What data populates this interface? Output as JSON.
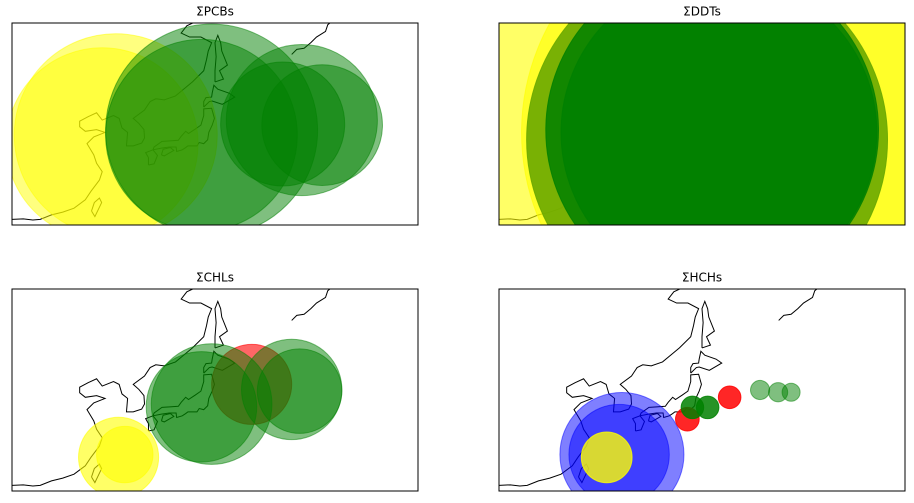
{
  "chart_data": [
    {
      "type": "scatter",
      "title": "ΣPCBs",
      "xlim": [
        106,
        178
      ],
      "ylim": [
        20.5,
        56.5
      ],
      "series": [
        {
          "color": "#ffff00",
          "alpha": 0.5,
          "x": [
            124.4,
            122
          ],
          "y": [
            36.5,
            35
          ],
          "sizes": [
            18,
            17
          ]
        },
        {
          "color": "#008000",
          "alpha": 0.5,
          "x": [
            141.4,
            139.6,
            157.4,
            161,
            154
          ],
          "y": [
            37.4,
            36.5,
            39.2,
            38.3,
            38.5
          ],
          "sizes": [
            18.8,
            17,
            13.4,
            10.7,
            11
          ]
        }
      ]
    },
    {
      "type": "scatter",
      "title": "ΣDDTs",
      "xlim": [
        106,
        178
      ],
      "ylim": [
        20.5,
        56.5
      ],
      "series": [
        {
          "color": "#ffff00",
          "alpha": 0.6,
          "x": [
            142,
            150
          ],
          "y": [
            37.4,
            37
          ],
          "sizes": [
            55,
            40
          ]
        },
        {
          "color": "#6aa800",
          "alpha": 0.9,
          "x": [
            142.9
          ],
          "y": [
            35.7
          ],
          "sizes": [
            32
          ]
        },
        {
          "color": "#008000",
          "alpha": 0.85,
          "x": [
            143.8,
            145
          ],
          "y": [
            37.4,
            37
          ],
          "sizes": [
            29.5,
            28
          ]
        }
      ]
    },
    {
      "type": "scatter",
      "title": "ΣCHLs",
      "xlim": [
        106,
        178
      ],
      "ylim": [
        20.5,
        56.5
      ],
      "series": [
        {
          "color": "#ffff00",
          "alpha": 0.6,
          "x": [
            124.9,
            126
          ],
          "y": [
            26.5,
            27
          ],
          "sizes": [
            7.1,
            5
          ]
        },
        {
          "color": "#ff0000",
          "alpha": 0.6,
          "x": [
            148.5
          ],
          "y": [
            39.5
          ],
          "sizes": [
            7.1
          ]
        },
        {
          "color": "#008000",
          "alpha": 0.5,
          "x": [
            141.4,
            139.6,
            155.6,
            157
          ],
          "y": [
            36,
            35.5,
            38.6,
            38.3
          ],
          "sizes": [
            10.7,
            9.8,
            8.9,
            7.5
          ]
        }
      ]
    },
    {
      "type": "scatter",
      "title": "ΣHCHs",
      "xlim": [
        106,
        178
      ],
      "ylim": [
        20.5,
        56.5
      ],
      "series": [
        {
          "color": "#0000ff",
          "alpha": 0.5,
          "x": [
            127.8,
            127.3
          ],
          "y": [
            27,
            27
          ],
          "sizes": [
            11,
            8.9
          ]
        },
        {
          "color": "#ffff00",
          "alpha": 0.8,
          "x": [
            125.1
          ],
          "y": [
            26.5
          ],
          "sizes": [
            4.5
          ]
        },
        {
          "color": "#ff0000",
          "alpha": 0.85,
          "x": [
            139.4,
            146.9
          ],
          "y": [
            33.3,
            37.2
          ],
          "sizes": [
            2.1,
            2
          ]
        },
        {
          "color": "#008000",
          "alpha": 0.85,
          "x": [
            140.3,
            143
          ],
          "y": [
            35.4,
            35.4
          ],
          "sizes": [
            2,
            2
          ]
        },
        {
          "color": "#008000",
          "alpha": 0.5,
          "x": [
            152.3,
            155.5,
            157.8
          ],
          "y": [
            38.5,
            38.1,
            38.1
          ],
          "sizes": [
            1.7,
            1.7,
            1.6
          ]
        }
      ]
    }
  ]
}
